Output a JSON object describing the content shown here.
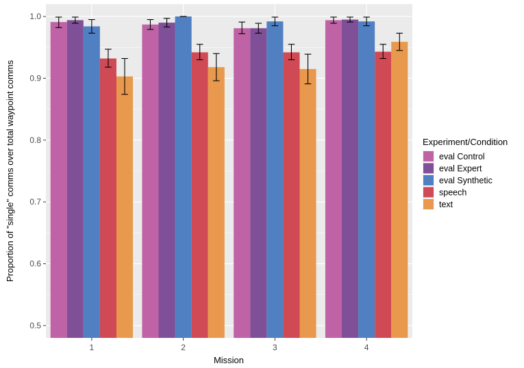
{
  "chart_data": {
    "type": "bar",
    "title": "",
    "xlabel": "Mission",
    "ylabel": "Proportion of \"single\" comms over total waypoint comms",
    "categories": [
      "1",
      "2",
      "3",
      "4"
    ],
    "ylim": [
      0.48,
      1.02
    ],
    "yticks": [
      0.5,
      0.6,
      0.7,
      0.8,
      0.9,
      1.0
    ],
    "ytick_labels": [
      "0.5",
      "0.6",
      "0.7",
      "0.8",
      "0.9",
      "1.0"
    ],
    "legend_title": "Experiment/Condition",
    "legend_position": "right",
    "series": [
      {
        "name": "eval Control",
        "color": "#bf63a6",
        "values": [
          0.991,
          0.987,
          0.981,
          0.994
        ],
        "err_low": [
          0.982,
          0.979,
          0.972,
          0.989
        ],
        "err_high": [
          0.999,
          0.995,
          0.991,
          0.999
        ]
      },
      {
        "name": "eval Expert",
        "color": "#7f4f97",
        "values": [
          0.994,
          0.99,
          0.981,
          0.995
        ],
        "err_low": [
          0.989,
          0.983,
          0.973,
          0.991
        ],
        "err_high": [
          0.999,
          0.997,
          0.989,
          0.999
        ]
      },
      {
        "name": "eval Synthetic",
        "color": "#5080c2",
        "values": [
          0.984,
          1.0,
          0.992,
          0.992
        ],
        "err_low": [
          0.973,
          1.0,
          0.985,
          0.985
        ],
        "err_high": [
          0.995,
          1.0,
          0.999,
          0.999
        ]
      },
      {
        "name": "speech",
        "color": "#cf4a55",
        "values": [
          0.932,
          0.942,
          0.942,
          0.943
        ],
        "err_low": [
          0.918,
          0.93,
          0.93,
          0.932
        ],
        "err_high": [
          0.947,
          0.955,
          0.955,
          0.955
        ]
      },
      {
        "name": "text",
        "color": "#e9994d",
        "values": [
          0.903,
          0.918,
          0.915,
          0.959
        ],
        "err_low": [
          0.874,
          0.896,
          0.891,
          0.945
        ],
        "err_high": [
          0.932,
          0.94,
          0.939,
          0.973
        ]
      }
    ]
  }
}
